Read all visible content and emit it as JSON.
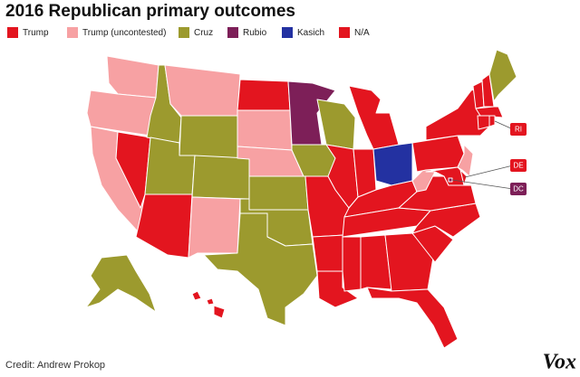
{
  "title": "2016 Republican primary outcomes",
  "legend": [
    {
      "label": "Trump",
      "color": "#e3151f"
    },
    {
      "label": "Trump (uncontested)",
      "color": "#f7a1a3"
    },
    {
      "label": "Cruz",
      "color": "#9c9a2e"
    },
    {
      "label": "Rubio",
      "color": "#7d1f58"
    },
    {
      "label": "Kasich",
      "color": "#2331a1"
    },
    {
      "label": "N/A",
      "color": "#e3151f"
    }
  ],
  "outcomes": {
    "WA": 1,
    "OR": 1,
    "CA": 1,
    "NV": 0,
    "ID": 2,
    "MT": 1,
    "WY": 2,
    "UT": 2,
    "AZ": 0,
    "CO": 2,
    "NM": 1,
    "ND": 5,
    "SD": 1,
    "NE": 1,
    "KS": 2,
    "OK": 2,
    "TX": 2,
    "MN": 3,
    "IA": 2,
    "MO": 0,
    "AR": 0,
    "LA": 0,
    "WI": 2,
    "IL": 0,
    "MI": 0,
    "IN": 0,
    "OH": 4,
    "KY": 0,
    "TN": 0,
    "MS": 0,
    "AL": 0,
    "GA": 0,
    "FL": 0,
    "SC": 0,
    "NC": 0,
    "VA": 0,
    "WV": 1,
    "PA": 0,
    "NY": 0,
    "VT": 0,
    "NH": 0,
    "ME": 2,
    "MA": 0,
    "CT": 0,
    "RI": 0,
    "NJ": 1,
    "DE": 0,
    "MD": 0,
    "DC": 3,
    "AK": 2,
    "HI": 0
  },
  "callouts": [
    {
      "label": "RI",
      "legend": 0
    },
    {
      "label": "DE",
      "legend": 0
    },
    {
      "label": "DC",
      "legend": 3
    }
  ],
  "credit": "Credit: Andrew Prokop",
  "logo": "Vox"
}
